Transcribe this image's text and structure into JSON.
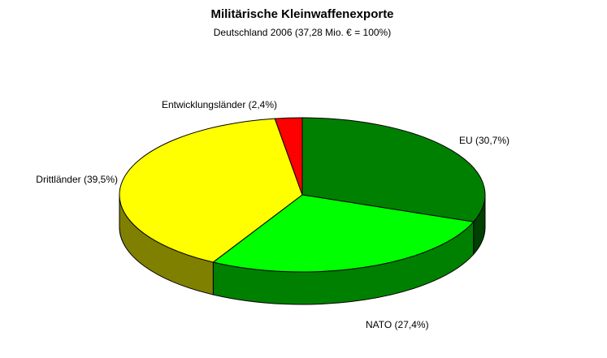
{
  "chart_data": {
    "type": "pie3d",
    "title": "Militärische Kleinwaffenexporte",
    "subtitle": "Deutschland 2006 (37,28 Mio. € = 100%)",
    "values": [
      30.7,
      27.4,
      39.5,
      2.4
    ],
    "value_labels": [
      "EU (30,7%)",
      "NATO (27,4%)",
      "Drittländer (39,5%)",
      "Entwicklungsländer (2,4%)"
    ],
    "colors": [
      "#008000",
      "#00ff00",
      "#ffff00",
      "#ff0000"
    ]
  }
}
